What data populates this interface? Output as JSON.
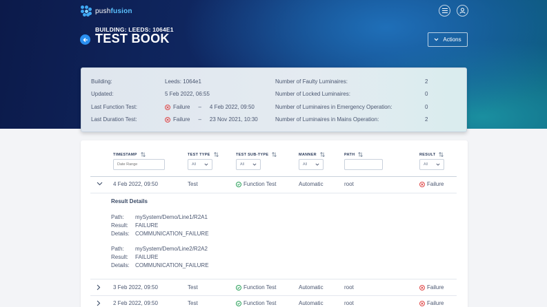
{
  "app": {
    "logo_prefix": "push",
    "logo_suffix": "fusion",
    "icons": {
      "menu": "menu-icon",
      "user": "user-icon",
      "back": "arrow-left-icon"
    }
  },
  "header": {
    "subtitle": "BUILDING: LEEDS: 1064E1",
    "title": "TEST BOOK",
    "actions_label": "Actions"
  },
  "summary": {
    "building_label": "Building:",
    "building_value": "Leeds: 1064e1",
    "updated_label": "Updated:",
    "updated_value": "5 Feb 2022, 06:55",
    "last_function_label": "Last Function Test:",
    "last_function_result": "Failure",
    "last_function_sep": "–",
    "last_function_date": "4 Feb 2022, 09:50",
    "last_duration_label": "Last Duration Test:",
    "last_duration_result": "Failure",
    "last_duration_sep": "–",
    "last_duration_date": "23 Nov 2021, 10:30",
    "faulty_label": "Number of Faulty Luminaires:",
    "faulty_value": "2",
    "locked_label": "Number of Locked Luminaires:",
    "locked_value": "0",
    "emergency_label": "Number of Luminaires in Emergency Operation:",
    "emergency_value": "0",
    "mains_label": "Number of Luminaires in Mains Operation:",
    "mains_value": "2"
  },
  "table": {
    "columns": {
      "timestamp": "TIMESTAMP",
      "test_type": "TEST TYPE",
      "test_sub_type": "TEST SUB-TYPE",
      "manner": "MANNER",
      "path": "PATH",
      "result": "RESULT"
    },
    "filters": {
      "date_range_placeholder": "Date Range",
      "all": "All"
    },
    "rows": [
      {
        "timestamp": "4 Feb 2022, 09:50",
        "test_type": "Test",
        "sub_type": "Function Test",
        "manner": "Automatic",
        "path": "root",
        "result": "Failure"
      },
      {
        "timestamp": "3 Feb 2022, 09:50",
        "test_type": "Test",
        "sub_type": "Function Test",
        "manner": "Automatic",
        "path": "root",
        "result": "Failure"
      },
      {
        "timestamp": "2 Feb 2022, 09:50",
        "test_type": "Test",
        "sub_type": "Function Test",
        "manner": "Automatic",
        "path": "root",
        "result": "Failure"
      }
    ],
    "details": {
      "title": "Result Details",
      "path_label": "Path:",
      "result_label": "Result:",
      "details_label": "Details:",
      "entries": [
        {
          "path": "mySystem/Demo/Line1/R2A1",
          "result": "FAILURE",
          "details": "COMMUNICATION_FAILURE"
        },
        {
          "path": "mySystem/Demo/Line2/R2A2",
          "result": "FAILURE",
          "details": "COMMUNICATION_FAILURE"
        }
      ]
    }
  },
  "colors": {
    "accent": "#2a8ff0",
    "failure": "#e04a4a",
    "success": "#2aa05a"
  }
}
